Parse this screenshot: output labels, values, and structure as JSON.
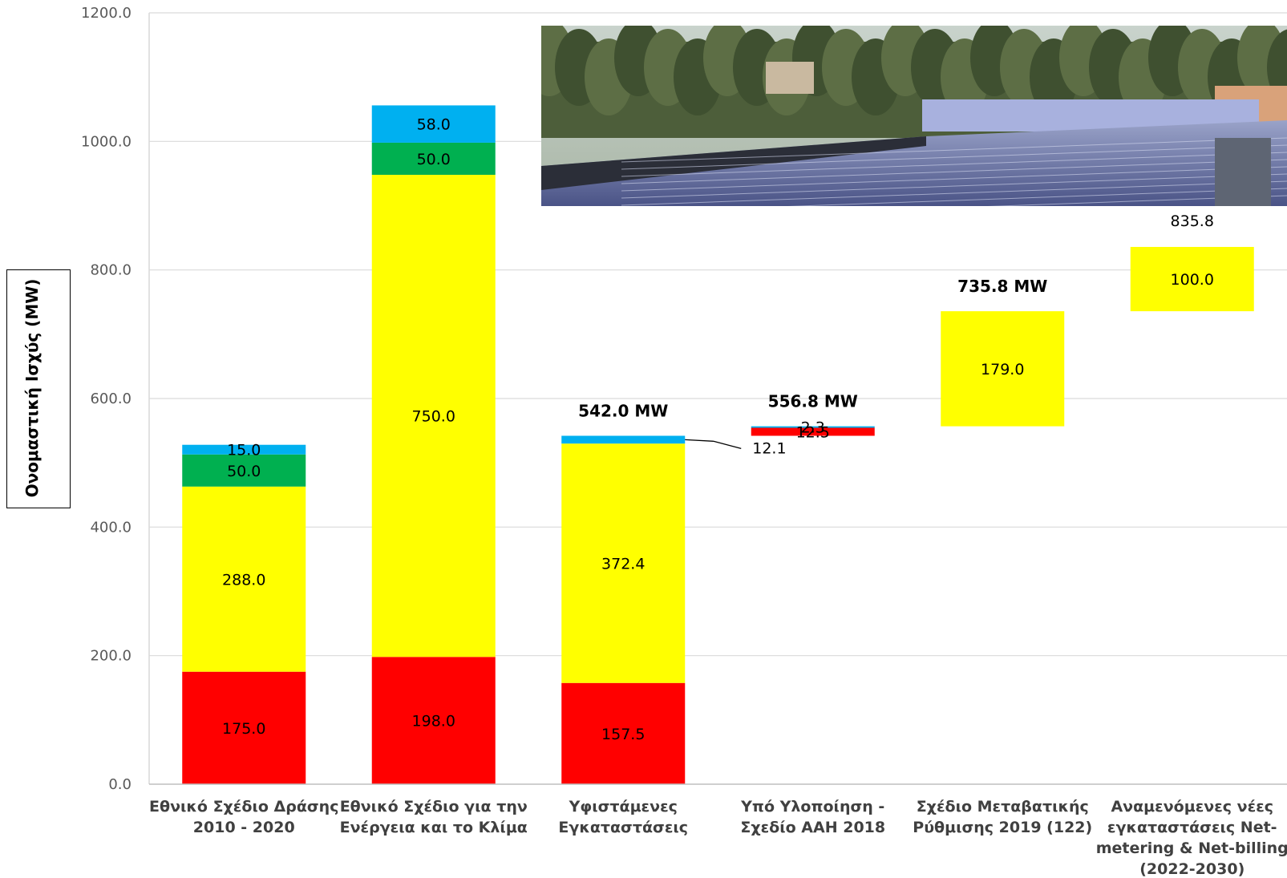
{
  "chart_data": {
    "type": "bar",
    "subtype": "stacked-waterfall",
    "ylabel": "Ονομαστική Ισχύς (MW)",
    "xlabel": "",
    "ylim": [
      0,
      1200
    ],
    "yticks": [
      "0.0",
      "200.0",
      "400.0",
      "600.0",
      "800.0",
      "1000.0",
      "1200.0"
    ],
    "grid": true,
    "categories": [
      [
        "Εθνικό Σχέδιο Δράσης",
        "2010 - 2020"
      ],
      [
        "Εθνικό Σχέδιο για την",
        "Ενέργεια και το Κλίμα"
      ],
      [
        "Υφιστάμενες",
        "Εγκαταστάσεις"
      ],
      [
        "Υπό Υλοποίηση -",
        "Σχεδίο ΑΑΗ 2018"
      ],
      [
        "Σχέδιο Μεταβατικής",
        "Ρύθμισης 2019 (122)"
      ],
      [
        "Αναμενόμενες νέες",
        "εγκαταστάσεις Net-",
        "metering & Net-billing",
        "(2022-2030)"
      ]
    ],
    "colors": {
      "red": "#ff0000",
      "yellow": "#ffff00",
      "green": "#00b050",
      "blue": "#00b0f0",
      "grid": "#d9d9d9"
    },
    "bars": [
      {
        "segments": [
          {
            "color": "red",
            "base": 0,
            "value": 175.0,
            "label": "175.0"
          },
          {
            "color": "yellow",
            "base": 175,
            "value": 288.0,
            "label": "288.0"
          },
          {
            "color": "green",
            "base": 463,
            "value": 50.0,
            "label": "50.0"
          },
          {
            "color": "blue",
            "base": 513,
            "value": 15.0,
            "label": "15.0"
          }
        ]
      },
      {
        "segments": [
          {
            "color": "red",
            "base": 0,
            "value": 198.0,
            "label": "198.0"
          },
          {
            "color": "yellow",
            "base": 198,
            "value": 750.0,
            "label": "750.0"
          },
          {
            "color": "green",
            "base": 948,
            "value": 50.0,
            "label": "50.0"
          },
          {
            "color": "blue",
            "base": 998,
            "value": 58.0,
            "label": "58.0"
          }
        ]
      },
      {
        "total_label": "542.0 MW",
        "segments": [
          {
            "color": "red",
            "base": 0,
            "value": 157.5,
            "label": "157.5"
          },
          {
            "color": "yellow",
            "base": 157.5,
            "value": 372.4,
            "label": "372.4"
          },
          {
            "color": "blue",
            "base": 529.9,
            "value": 12.1,
            "label": "12.1",
            "callout": true
          }
        ]
      },
      {
        "total_label": "556.8 MW",
        "segments": [
          {
            "color": "red",
            "base": 542.0,
            "value": 12.5,
            "label": "12.5"
          },
          {
            "color": "blue",
            "base": 554.5,
            "value": 2.3,
            "label": "2.3"
          }
        ]
      },
      {
        "total_label": "735.8 MW",
        "segments": [
          {
            "color": "yellow",
            "base": 556.8,
            "value": 179.0,
            "label": "179.0"
          }
        ]
      },
      {
        "total_label": "835.8",
        "segments": [
          {
            "color": "yellow",
            "base": 735.8,
            "value": 100.0,
            "label": "100.0"
          }
        ]
      }
    ]
  },
  "photo": {
    "name": "rooftop-solar-panels-photo"
  }
}
